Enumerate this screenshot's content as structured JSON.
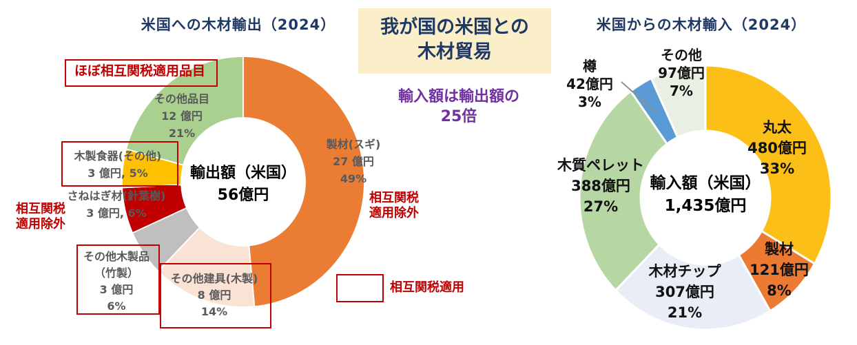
{
  "center_panel": {
    "title_lines": [
      "我が国の米国との",
      "木材貿易"
    ],
    "subtitle_lines": [
      "輸入額は輸出額の",
      "25倍"
    ],
    "box_color": "#FBEFC9",
    "title_color": "#1F3864",
    "subtitle_color": "#7030A0"
  },
  "annotations": {
    "almost_tariff_note": "ほぼ相互関税適用品目",
    "exempt_note_lines": [
      "相互関税",
      "適用除外"
    ],
    "tariff_applied_label": "相互関税適用",
    "accent_red": "#C00000"
  },
  "chart_data": [
    {
      "type": "pie",
      "title": "米国への木材輸出（2024）",
      "unit": "億円",
      "center_label": [
        "輸出額（米国）",
        "56億円"
      ],
      "total_oku_yen": 56,
      "legend_position": "labels-around-donut",
      "slices": [
        {
          "name": "製材（スギ）",
          "oku_yen": 27,
          "pct": 49,
          "color": "#EA7C33",
          "lines": [
            "製材(スギ)",
            "27 億円",
            "49%"
          ]
        },
        {
          "name": "その他建具（木製）",
          "oku_yen": 8,
          "pct": 14,
          "color": "#FAE3D5",
          "lines": [
            "その他建具(木製)",
            "8 億円",
            "14%"
          ]
        },
        {
          "name": "その他木製品（竹製）",
          "oku_yen": 3,
          "pct": 6,
          "color": "#BFBFBF",
          "lines": [
            "その他木製品",
            "（竹製）",
            "3 億円",
            "6%"
          ]
        },
        {
          "name": "さねはぎ材（針葉樹）",
          "oku_yen": 3,
          "pct": 6,
          "color": "#C00000",
          "lines": [
            "さねはぎ材(針葉樹)",
            "3 億円, 6%"
          ]
        },
        {
          "name": "木製食器（その他）",
          "oku_yen": 3,
          "pct": 5,
          "color": "#FFC000",
          "lines": [
            "木製食器(その他)",
            "3 億円, 5%"
          ]
        },
        {
          "name": "その他品目",
          "oku_yen": 12,
          "pct": 21,
          "color": "#A9D08E",
          "lines": [
            "その他品目",
            "12 億円",
            "21%"
          ]
        }
      ]
    },
    {
      "type": "pie",
      "title": "米国からの木材輸入（2024）",
      "unit": "億円",
      "center_label": [
        "輸入額（米国）",
        "1,435億円"
      ],
      "total_oku_yen": 1435,
      "legend_position": "labels-around-donut",
      "slices": [
        {
          "name": "丸太",
          "oku_yen": 480,
          "pct": 33,
          "color": "#FBBF17",
          "lines": [
            "丸太",
            "480億円",
            "33%"
          ]
        },
        {
          "name": "製材",
          "oku_yen": 121,
          "pct": 8,
          "color": "#ED7A33",
          "lines": [
            "製材",
            "121億円",
            "8%"
          ]
        },
        {
          "name": "木材チップ",
          "oku_yen": 307,
          "pct": 21,
          "color": "#E9EDF5",
          "lines": [
            "木材チップ",
            "307億円",
            "21%"
          ]
        },
        {
          "name": "木質ペレット",
          "oku_yen": 388,
          "pct": 27,
          "color": "#B6D7A4",
          "lines": [
            "木質ペレット",
            "388億円",
            "27%"
          ]
        },
        {
          "name": "樽",
          "oku_yen": 42,
          "pct": 3,
          "color": "#5B9BD5",
          "lines": [
            "樽",
            "42億円",
            "3%"
          ]
        },
        {
          "name": "その他",
          "oku_yen": 97,
          "pct": 7,
          "color": "#E9F0E3",
          "lines": [
            "その他",
            "97億円",
            "7%"
          ]
        }
      ]
    }
  ]
}
